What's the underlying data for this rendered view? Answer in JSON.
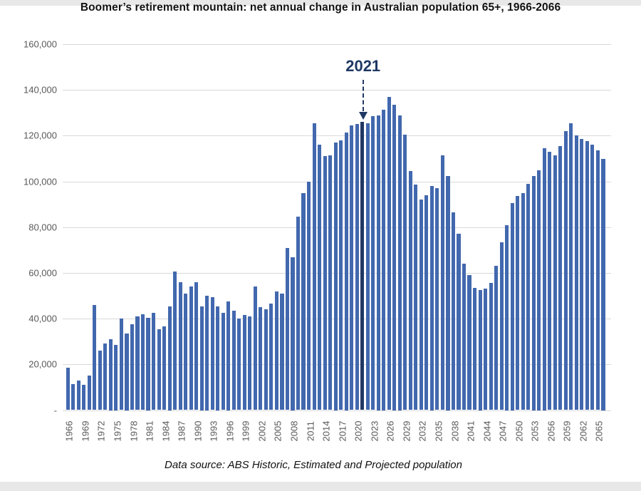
{
  "title": "Boomer’s retirement mountain: net annual change in Australian population 65+, 1966-2066",
  "footer": "Data source: ABS Historic, Estimated and Projected population",
  "annotation": {
    "label": "2021",
    "year": 2021
  },
  "y_axis": {
    "zero_label": "-",
    "tick_labels": [
      "-",
      "20,000",
      "40,000",
      "60,000",
      "80,000",
      "100,000",
      "120,000",
      "140,000",
      "160,000"
    ]
  },
  "x_axis": {
    "tick_years": [
      1966,
      1969,
      1972,
      1975,
      1978,
      1981,
      1984,
      1987,
      1990,
      1993,
      1996,
      1999,
      2002,
      2005,
      2008,
      2011,
      2014,
      2017,
      2020,
      2023,
      2026,
      2029,
      2032,
      2035,
      2038,
      2041,
      2044,
      2047,
      2050,
      2053,
      2056,
      2059,
      2062,
      2065
    ]
  },
  "colors": {
    "bar": "#4268ae",
    "bar_highlight": "#203864",
    "gridline": "#d9d9d9",
    "axis_text": "#595959",
    "annotation": "#1f3864",
    "frame": "#e8e8e8",
    "panel": "#ffffff"
  },
  "chart_data": {
    "type": "bar",
    "title": "Boomer’s retirement mountain: net annual change in Australian population 65+, 1966-2066",
    "xlabel": "",
    "ylabel": "",
    "ylim": [
      0,
      160000
    ],
    "y_step": 20000,
    "grid": true,
    "highlight_year": 2021,
    "x_start": 1966,
    "x_end": 2066,
    "x": [
      1966,
      1967,
      1968,
      1969,
      1970,
      1971,
      1972,
      1973,
      1974,
      1975,
      1976,
      1977,
      1978,
      1979,
      1980,
      1981,
      1982,
      1983,
      1984,
      1985,
      1986,
      1987,
      1988,
      1989,
      1990,
      1991,
      1992,
      1993,
      1994,
      1995,
      1996,
      1997,
      1998,
      1999,
      2000,
      2001,
      2002,
      2003,
      2004,
      2005,
      2006,
      2007,
      2008,
      2009,
      2010,
      2011,
      2012,
      2013,
      2014,
      2015,
      2016,
      2017,
      2018,
      2019,
      2020,
      2021,
      2022,
      2023,
      2024,
      2025,
      2026,
      2027,
      2028,
      2029,
      2030,
      2031,
      2032,
      2033,
      2034,
      2035,
      2036,
      2037,
      2038,
      2039,
      2040,
      2041,
      2042,
      2043,
      2044,
      2045,
      2046,
      2047,
      2048,
      2049,
      2050,
      2051,
      2052,
      2053,
      2054,
      2055,
      2056,
      2057,
      2058,
      2059,
      2060,
      2061,
      2062,
      2063,
      2064,
      2065,
      2066
    ],
    "values": [
      18500,
      11500,
      13000,
      11000,
      15000,
      46000,
      26000,
      29000,
      31000,
      28500,
      40000,
      33500,
      37500,
      41000,
      42000,
      40500,
      42500,
      35500,
      36500,
      45500,
      60500,
      56000,
      51000,
      54000,
      56000,
      45500,
      50000,
      49500,
      45500,
      42500,
      47500,
      43500,
      40000,
      41500,
      41000,
      54000,
      45000,
      44000,
      46500,
      52000,
      51000,
      71000,
      67000,
      84500,
      95000,
      100000,
      125500,
      116000,
      111000,
      111500,
      117000,
      118000,
      121500,
      124500,
      125000,
      126000,
      125500,
      128500,
      129000,
      131500,
      137000,
      133500,
      129000,
      120500,
      104500,
      98500,
      92000,
      94000,
      98000,
      97000,
      111500,
      102500,
      86500,
      77000,
      64000,
      59000,
      53500,
      52500,
      53000,
      55500,
      63000,
      73500,
      81000,
      90500,
      93500,
      95000,
      99000,
      102500,
      105000,
      114500,
      113000,
      111500,
      115500,
      122000,
      125500,
      120000,
      118500,
      117500,
      116000,
      113500,
      110000
    ]
  }
}
